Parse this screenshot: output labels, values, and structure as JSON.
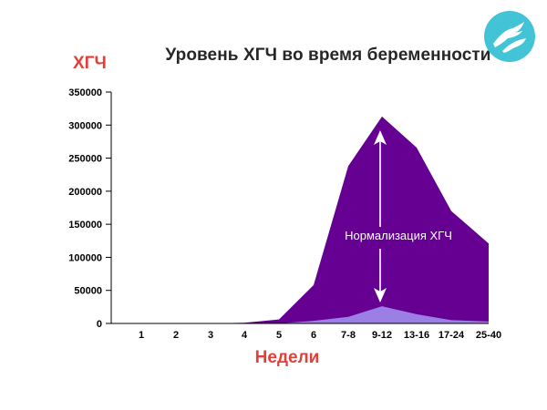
{
  "header": {
    "title": "Уровень ХГЧ во время беременности"
  },
  "labels": {
    "annotation": "Нормализация ХГЧ"
  },
  "icons": {
    "logo": "hands-logo-icon"
  },
  "colors": {
    "upper_area": "#650092",
    "lower_area": "#9b7fe4",
    "arrow": "#ffffff",
    "axis_titles": "#e0403a",
    "title": "#262626",
    "logo": "#43c3d6"
  },
  "chart_data": {
    "type": "area",
    "title": "Уровень ХГЧ во время беременности",
    "xlabel": "Недели",
    "ylabel": "ХГЧ",
    "categories": [
      "1",
      "2",
      "3",
      "4",
      "5",
      "6",
      "7-8",
      "9-12",
      "13-16",
      "17-24",
      "25-40"
    ],
    "y_ticks": [
      "0",
      "50000",
      "100000",
      "150000",
      "200000",
      "250000",
      "300000",
      "350000"
    ],
    "ylim": [
      0,
      350000
    ],
    "series": [
      {
        "values": [
          0,
          0,
          0,
          1000,
          6000,
          58000,
          238000,
          313000,
          266000,
          170000,
          121000
        ]
      },
      {
        "values": [
          0,
          0,
          0,
          0,
          0,
          4000,
          10000,
          26000,
          14000,
          5000,
          3000
        ]
      }
    ],
    "annotation": "Нормализация ХГЧ",
    "grid": false
  }
}
